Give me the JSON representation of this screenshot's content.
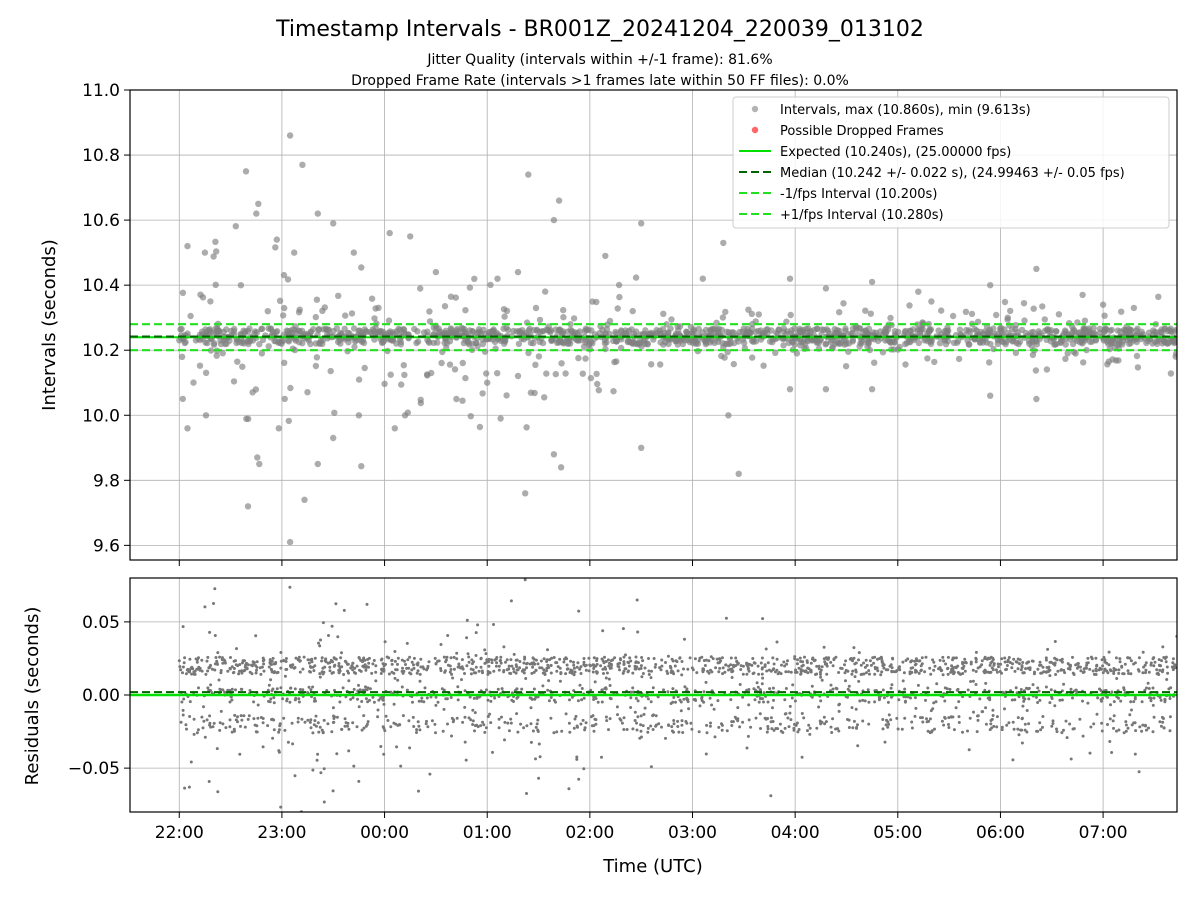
{
  "chart_data": {
    "type": "scatter",
    "title": "Timestamp Intervals - BR001Z_20241204_220039_013102",
    "subtitle_lines": [
      "Jitter Quality (intervals within +/-1 frame): 81.6%",
      "Dropped Frame Rate (intervals >1 frames late within 50 FF files): 0.0%"
    ],
    "xlabel": "Time (UTC)",
    "x_tick_labels": [
      "22:00",
      "23:00",
      "00:00",
      "01:00",
      "02:00",
      "03:00",
      "04:00",
      "05:00",
      "06:00",
      "07:00"
    ],
    "x_tick_hours": [
      0,
      1,
      2,
      3,
      4,
      5,
      6,
      7,
      8,
      9
    ],
    "xlim_hours": [
      -0.48,
      9.72
    ],
    "data_hours_range": [
      0.0,
      9.72
    ],
    "grid": true,
    "panels": [
      {
        "name": "intervals",
        "ylabel": "Intervals (seconds)",
        "ylim": [
          9.555,
          11.0
        ],
        "y_ticks": [
          9.6,
          9.8,
          10.0,
          10.2,
          10.4,
          10.6,
          10.8,
          11.0
        ],
        "y_tick_labels": [
          "9.6",
          "9.8",
          "10.0",
          "10.2",
          "10.4",
          "10.6",
          "10.8",
          "11.0"
        ],
        "intervals_max": 10.86,
        "intervals_min": 9.613,
        "expected": 10.24,
        "median": 10.242,
        "lower_bound": 10.2,
        "upper_bound": 10.28,
        "point_color": "#808080",
        "dropped_color": "#ff0000",
        "legend_position": "top-right",
        "legend": [
          {
            "label": "Intervals, max (10.860s), min (9.613s)",
            "kind": "point",
            "color": "#808080"
          },
          {
            "label": "Possible Dropped Frames",
            "kind": "point",
            "color": "#ff0000"
          },
          {
            "label": "Expected (10.240s), (25.00000 fps)",
            "kind": "line",
            "color": "#00e000"
          },
          {
            "label": "Median (10.242 +/- 0.022 s), (24.99463 +/- 0.05 fps)",
            "kind": "dashed",
            "color": "#006400"
          },
          {
            "label": "-1/fps Interval (10.200s)",
            "kind": "dashed",
            "color": "#20e020"
          },
          {
            "label": "+1/fps Interval (10.280s)",
            "kind": "dashed",
            "color": "#20e020"
          }
        ],
        "sample_outliers": [
          {
            "t": 0.08,
            "y": 10.52
          },
          {
            "t": 0.08,
            "y": 9.96
          },
          {
            "t": 0.25,
            "y": 10.5
          },
          {
            "t": 0.26,
            "y": 10.0
          },
          {
            "t": 0.6,
            "y": 10.4
          },
          {
            "t": 0.65,
            "y": 10.75
          },
          {
            "t": 0.67,
            "y": 9.72
          },
          {
            "t": 0.75,
            "y": 10.62
          },
          {
            "t": 0.77,
            "y": 10.65
          },
          {
            "t": 0.76,
            "y": 9.87
          },
          {
            "t": 0.78,
            "y": 9.85
          },
          {
            "t": 0.95,
            "y": 10.54
          },
          {
            "t": 0.97,
            "y": 9.96
          },
          {
            "t": 1.08,
            "y": 10.86
          },
          {
            "t": 1.08,
            "y": 9.61
          },
          {
            "t": 1.12,
            "y": 10.5
          },
          {
            "t": 1.2,
            "y": 10.77
          },
          {
            "t": 1.22,
            "y": 9.74
          },
          {
            "t": 1.35,
            "y": 10.62
          },
          {
            "t": 1.35,
            "y": 9.85
          },
          {
            "t": 1.5,
            "y": 10.59
          },
          {
            "t": 1.5,
            "y": 9.93
          },
          {
            "t": 1.7,
            "y": 10.5
          },
          {
            "t": 1.75,
            "y": 10.0
          },
          {
            "t": 2.05,
            "y": 10.56
          },
          {
            "t": 2.1,
            "y": 9.96
          },
          {
            "t": 2.2,
            "y": 10.0
          },
          {
            "t": 2.25,
            "y": 10.55
          },
          {
            "t": 2.5,
            "y": 10.44
          },
          {
            "t": 2.7,
            "y": 10.05
          },
          {
            "t": 3.0,
            "y": 10.1
          },
          {
            "t": 3.1,
            "y": 10.42
          },
          {
            "t": 3.3,
            "y": 10.44
          },
          {
            "t": 3.4,
            "y": 10.74
          },
          {
            "t": 3.37,
            "y": 9.76
          },
          {
            "t": 3.65,
            "y": 9.88
          },
          {
            "t": 3.7,
            "y": 10.66
          },
          {
            "t": 3.65,
            "y": 10.6
          },
          {
            "t": 3.72,
            "y": 9.84
          },
          {
            "t": 4.15,
            "y": 10.49
          },
          {
            "t": 4.5,
            "y": 10.59
          },
          {
            "t": 4.5,
            "y": 9.9
          },
          {
            "t": 5.1,
            "y": 10.42
          },
          {
            "t": 5.3,
            "y": 10.53
          },
          {
            "t": 5.35,
            "y": 10.0
          },
          {
            "t": 5.45,
            "y": 9.82
          },
          {
            "t": 5.95,
            "y": 10.42
          },
          {
            "t": 5.95,
            "y": 10.08
          },
          {
            "t": 6.3,
            "y": 10.39
          },
          {
            "t": 6.3,
            "y": 10.08
          },
          {
            "t": 6.75,
            "y": 10.41
          },
          {
            "t": 6.75,
            "y": 10.08
          },
          {
            "t": 7.2,
            "y": 10.38
          },
          {
            "t": 7.9,
            "y": 10.4
          },
          {
            "t": 7.9,
            "y": 10.06
          },
          {
            "t": 8.35,
            "y": 10.45
          },
          {
            "t": 8.35,
            "y": 10.05
          },
          {
            "t": 8.8,
            "y": 10.37
          },
          {
            "t": 9.0,
            "y": 10.34
          },
          {
            "t": 9.3,
            "y": 10.33
          }
        ]
      },
      {
        "name": "residuals",
        "ylabel": "Residuals (seconds)",
        "ylim": [
          -0.08,
          0.08
        ],
        "y_ticks": [
          -0.05,
          0.0,
          0.05
        ],
        "y_tick_labels": [
          "−0.05",
          "0.00",
          "0.05"
        ],
        "expected": 0.0,
        "median": 0.002,
        "point_color": "#777777"
      }
    ]
  }
}
